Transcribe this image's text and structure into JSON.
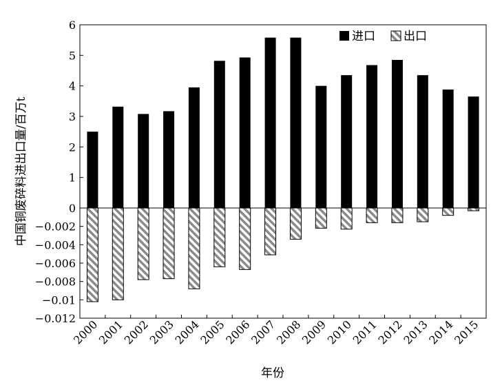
{
  "chart_data": {
    "type": "bar",
    "xlabel": "年份",
    "ylabel": "中国铜废碎料进出口量/百万t",
    "categories": [
      "2000",
      "2001",
      "2002",
      "2003",
      "2004",
      "2005",
      "2006",
      "2007",
      "2008",
      "2009",
      "2010",
      "2011",
      "2012",
      "2013",
      "2014",
      "2015"
    ],
    "series": [
      {
        "name": "进口",
        "values": [
          2.5,
          3.32,
          3.08,
          3.17,
          3.95,
          4.82,
          4.93,
          5.58,
          5.58,
          4.0,
          4.35,
          4.68,
          4.85,
          4.35,
          3.88,
          3.65
        ],
        "color": "#000000",
        "pattern": "solid"
      },
      {
        "name": "出口",
        "values": [
          -0.0102,
          -0.01,
          -0.0078,
          -0.0077,
          -0.0088,
          -0.0064,
          -0.0067,
          -0.0051,
          -0.0034,
          -0.0022,
          -0.0023,
          -0.0016,
          -0.0016,
          -0.0015,
          -0.0008,
          -0.0003
        ],
        "color": "#888888",
        "pattern": "diagonal-hatch"
      }
    ],
    "y_positive": {
      "ticks": [
        0,
        1,
        2,
        3,
        4,
        5,
        6
      ],
      "tick_labels": [
        "0",
        "1",
        "2",
        "3",
        "4",
        "5",
        "6"
      ],
      "range": [
        0,
        6
      ]
    },
    "y_negative": {
      "ticks": [
        -0.002,
        -0.004,
        -0.006,
        -0.008,
        -0.01,
        -0.012
      ],
      "tick_labels": [
        "−0.002",
        "−0.004",
        "−0.006",
        "−0.008",
        "−0.01",
        "−0.012"
      ],
      "range": [
        -0.012,
        0
      ]
    },
    "legend_position": "top-right",
    "grid": false
  }
}
